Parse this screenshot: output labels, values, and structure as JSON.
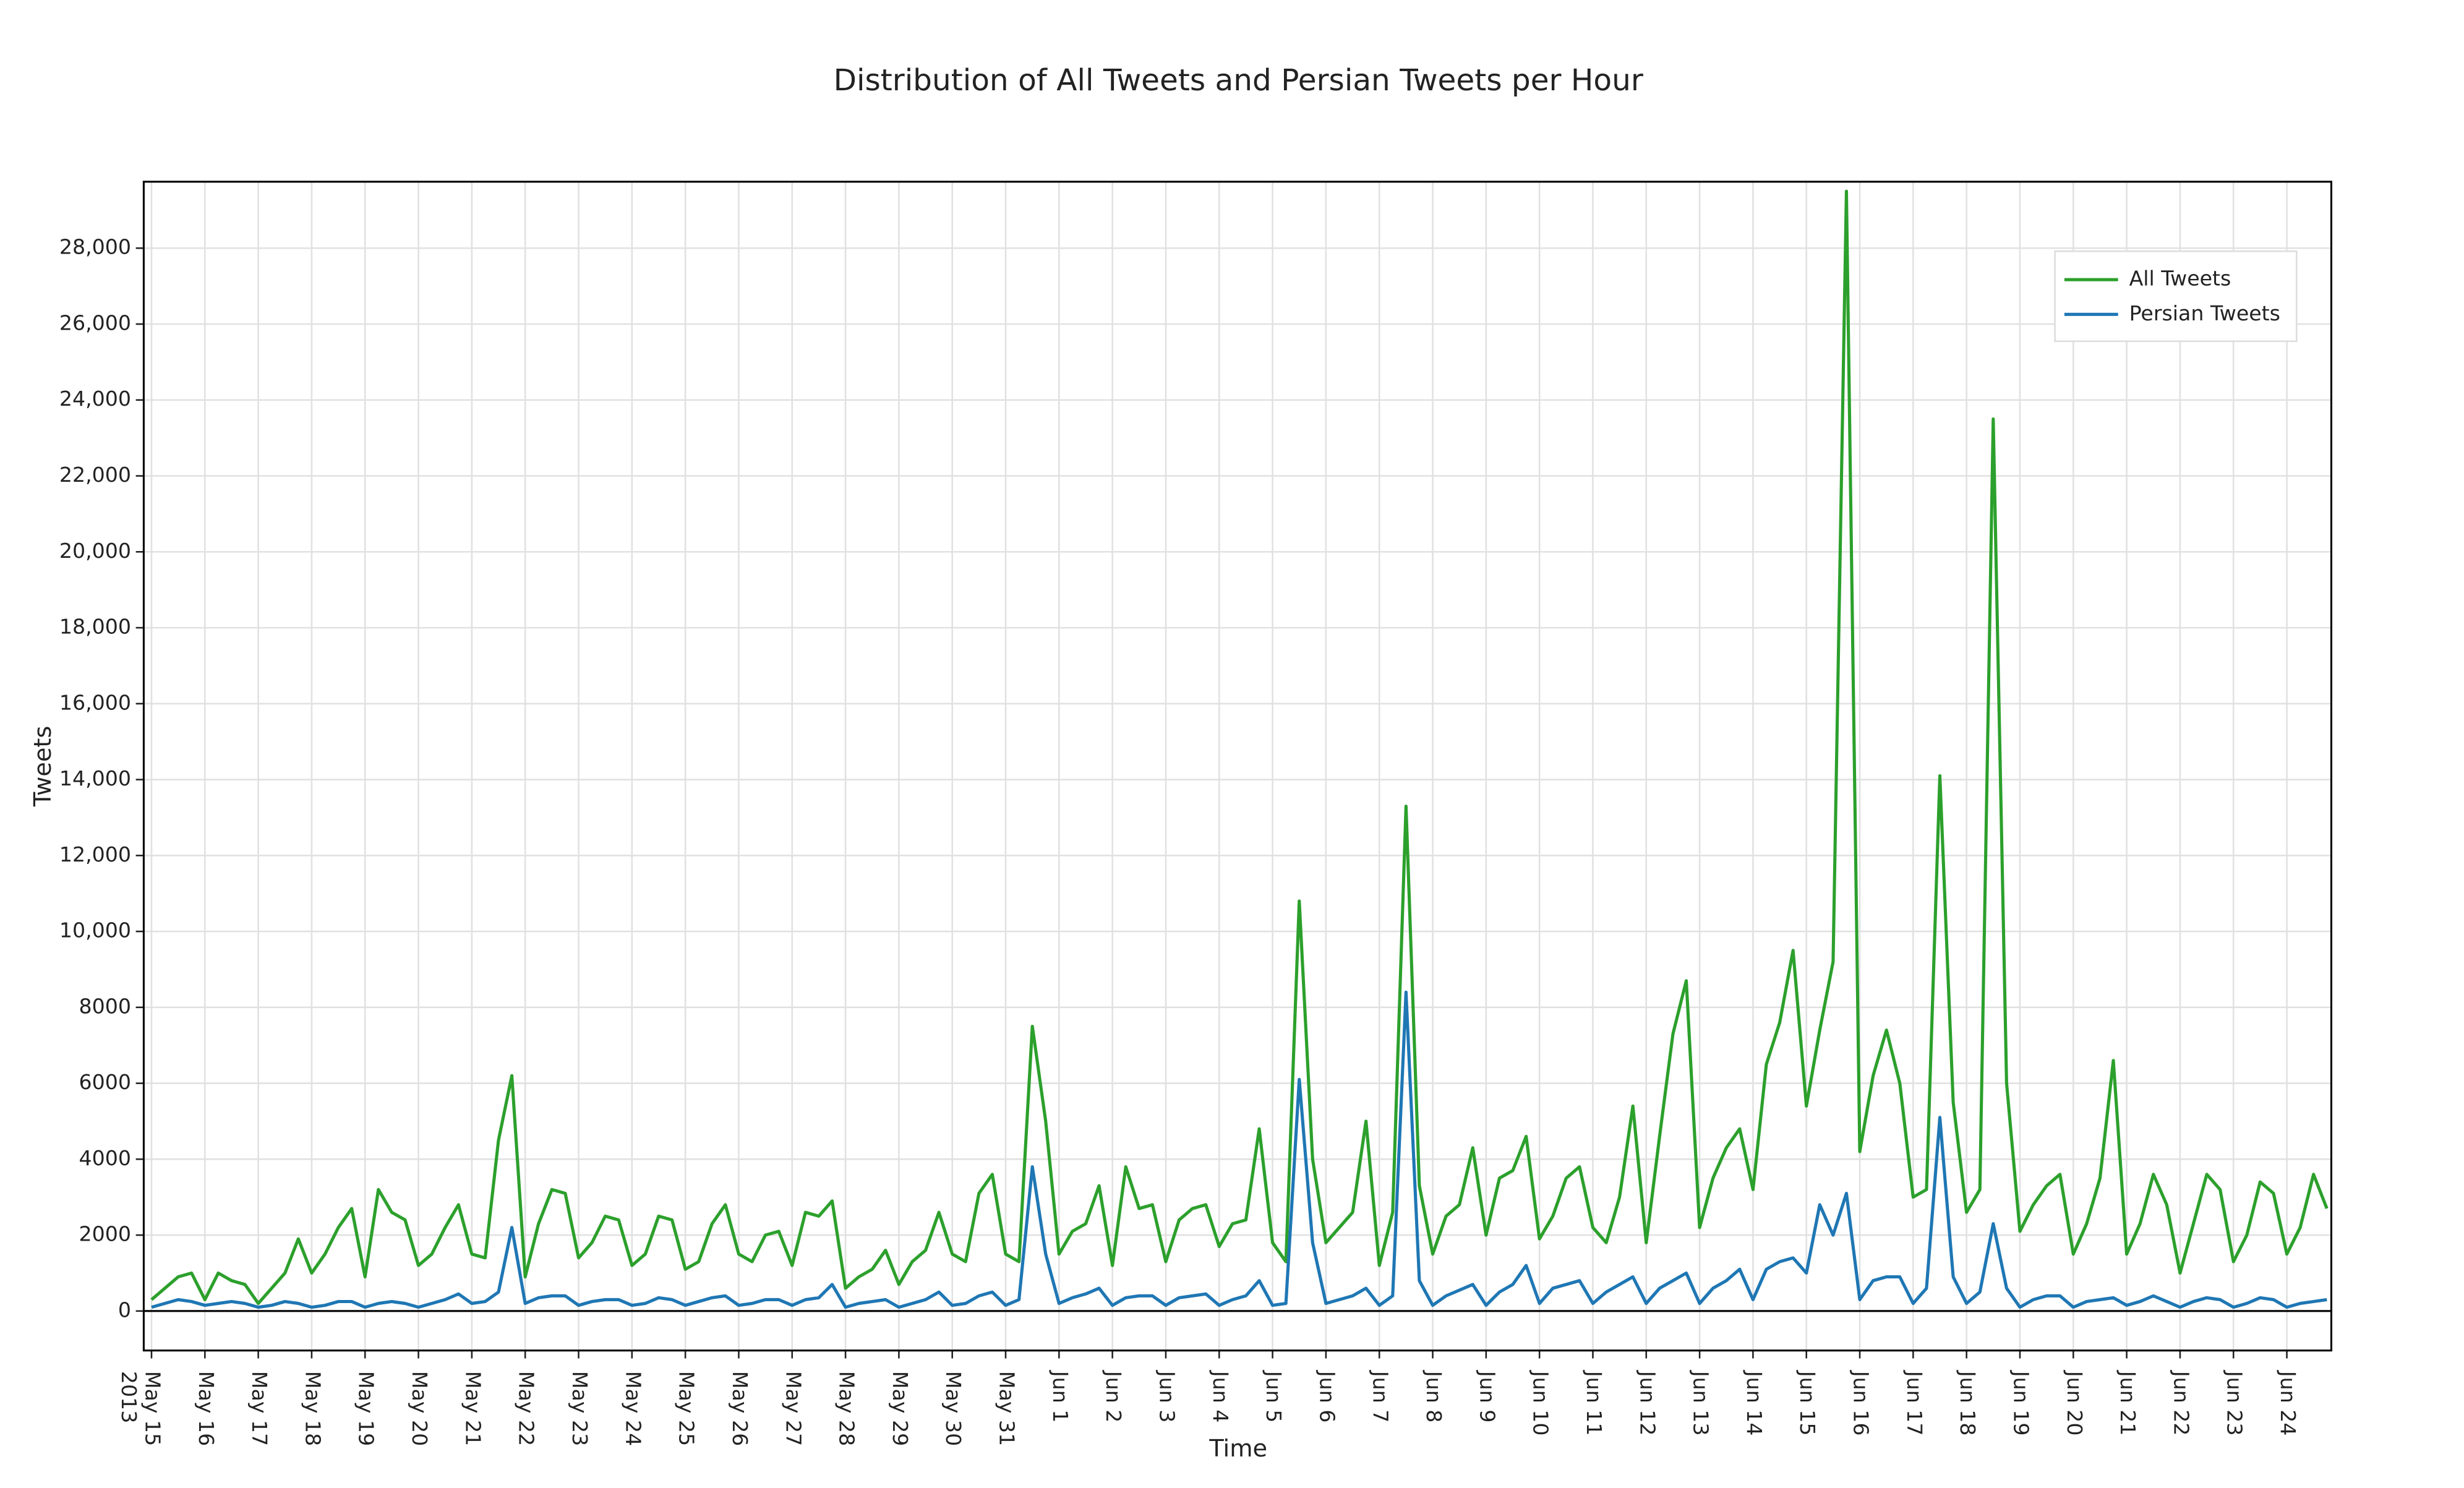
{
  "chart_data": {
    "type": "line",
    "title": "Distribution of All Tweets and Persian Tweets per Hour",
    "x_label": "Time",
    "y_label": "Tweets",
    "x_year": "2013",
    "grid": true,
    "legend": "top-right",
    "xlim": [
      "2013-05-14 20:30",
      "2013-06-24 20:00"
    ],
    "ylim": [
      -1040,
      29750
    ],
    "yticks": [
      0,
      2000,
      4000,
      6000,
      8000,
      {
        "value": 10000,
        "label": "10,000"
      },
      {
        "value": 12000,
        "label": "12,000"
      },
      {
        "value": 14000,
        "label": "14,000"
      },
      {
        "value": 16000,
        "label": "16,000"
      },
      {
        "value": 18000,
        "label": "18,000"
      },
      {
        "value": 20000,
        "label": "20,000"
      },
      {
        "value": 22000,
        "label": "22,000"
      },
      {
        "value": 24000,
        "label": "24,000"
      },
      {
        "value": 26000,
        "label": "26,000"
      },
      {
        "value": 28000,
        "label": "28,000"
      }
    ],
    "xticks": [
      {
        "value": "2013-05-15",
        "label": "May 15"
      },
      {
        "value": "2013-05-16",
        "label": "May 16"
      },
      {
        "value": "2013-05-17",
        "label": "May 17"
      },
      {
        "value": "2013-05-18",
        "label": "May 18"
      },
      {
        "value": "2013-05-19",
        "label": "May 19"
      },
      {
        "value": "2013-05-20",
        "label": "May 20"
      },
      {
        "value": "2013-05-21",
        "label": "May 21"
      },
      {
        "value": "2013-05-22",
        "label": "May 22"
      },
      {
        "value": "2013-05-23",
        "label": "May 23"
      },
      {
        "value": "2013-05-24",
        "label": "May 24"
      },
      {
        "value": "2013-05-25",
        "label": "May 25"
      },
      {
        "value": "2013-05-26",
        "label": "May 26"
      },
      {
        "value": "2013-05-27",
        "label": "May 27"
      },
      {
        "value": "2013-05-28",
        "label": "May 28"
      },
      {
        "value": "2013-05-29",
        "label": "May 29"
      },
      {
        "value": "2013-05-30",
        "label": "May 30"
      },
      {
        "value": "2013-05-31",
        "label": "May 31"
      },
      {
        "value": "2013-06-01",
        "label": "Jun 1"
      },
      {
        "value": "2013-06-02",
        "label": "Jun 2"
      },
      {
        "value": "2013-06-03",
        "label": "Jun 3"
      },
      {
        "value": "2013-06-04",
        "label": "Jun 4"
      },
      {
        "value": "2013-06-05",
        "label": "Jun 5"
      },
      {
        "value": "2013-06-06",
        "label": "Jun 6"
      },
      {
        "value": "2013-06-07",
        "label": "Jun 7"
      },
      {
        "value": "2013-06-08",
        "label": "Jun 8"
      },
      {
        "value": "2013-06-09",
        "label": "Jun 9"
      },
      {
        "value": "2013-06-10",
        "label": "Jun 10"
      },
      {
        "value": "2013-06-11",
        "label": "Jun 11"
      },
      {
        "value": "2013-06-12",
        "label": "Jun 12"
      },
      {
        "value": "2013-06-13",
        "label": "Jun 13"
      },
      {
        "value": "2013-06-14",
        "label": "Jun 14"
      },
      {
        "value": "2013-06-15",
        "label": "Jun 15"
      },
      {
        "value": "2013-06-16",
        "label": "Jun 16"
      },
      {
        "value": "2013-06-17",
        "label": "Jun 17"
      },
      {
        "value": "2013-06-18",
        "label": "Jun 18"
      },
      {
        "value": "2013-06-19",
        "label": "Jun 19"
      },
      {
        "value": "2013-06-20",
        "label": "Jun 20"
      },
      {
        "value": "2013-06-21",
        "label": "Jun 21"
      },
      {
        "value": "2013-06-22",
        "label": "Jun 22"
      },
      {
        "value": "2013-06-23",
        "label": "Jun 23"
      },
      {
        "value": "2013-06-24",
        "label": "Jun 24"
      }
    ],
    "x": [
      "2013-05-15 00:00",
      "2013-05-15 06:00",
      "2013-05-15 12:00",
      "2013-05-15 18:00",
      "2013-05-16 00:00",
      "2013-05-16 06:00",
      "2013-05-16 12:00",
      "2013-05-16 18:00",
      "2013-05-17 00:00",
      "2013-05-17 06:00",
      "2013-05-17 12:00",
      "2013-05-17 18:00",
      "2013-05-18 00:00",
      "2013-05-18 06:00",
      "2013-05-18 12:00",
      "2013-05-18 18:00",
      "2013-05-19 00:00",
      "2013-05-19 06:00",
      "2013-05-19 12:00",
      "2013-05-19 18:00",
      "2013-05-20 00:00",
      "2013-05-20 06:00",
      "2013-05-20 12:00",
      "2013-05-20 18:00",
      "2013-05-21 00:00",
      "2013-05-21 06:00",
      "2013-05-21 12:00",
      "2013-05-21 18:00",
      "2013-05-22 00:00",
      "2013-05-22 06:00",
      "2013-05-22 12:00",
      "2013-05-22 18:00",
      "2013-05-23 00:00",
      "2013-05-23 06:00",
      "2013-05-23 12:00",
      "2013-05-23 18:00",
      "2013-05-24 00:00",
      "2013-05-24 06:00",
      "2013-05-24 12:00",
      "2013-05-24 18:00",
      "2013-05-25 00:00",
      "2013-05-25 06:00",
      "2013-05-25 12:00",
      "2013-05-25 18:00",
      "2013-05-26 00:00",
      "2013-05-26 06:00",
      "2013-05-26 12:00",
      "2013-05-26 18:00",
      "2013-05-27 00:00",
      "2013-05-27 06:00",
      "2013-05-27 12:00",
      "2013-05-27 18:00",
      "2013-05-28 00:00",
      "2013-05-28 06:00",
      "2013-05-28 12:00",
      "2013-05-28 18:00",
      "2013-05-29 00:00",
      "2013-05-29 06:00",
      "2013-05-29 12:00",
      "2013-05-29 18:00",
      "2013-05-30 00:00",
      "2013-05-30 06:00",
      "2013-05-30 12:00",
      "2013-05-30 18:00",
      "2013-05-31 00:00",
      "2013-05-31 06:00",
      "2013-05-31 12:00",
      "2013-05-31 18:00",
      "2013-06-01 00:00",
      "2013-06-01 06:00",
      "2013-06-01 12:00",
      "2013-06-01 18:00",
      "2013-06-02 00:00",
      "2013-06-02 06:00",
      "2013-06-02 12:00",
      "2013-06-02 18:00",
      "2013-06-03 00:00",
      "2013-06-03 06:00",
      "2013-06-03 12:00",
      "2013-06-03 18:00",
      "2013-06-04 00:00",
      "2013-06-04 06:00",
      "2013-06-04 12:00",
      "2013-06-04 18:00",
      "2013-06-05 00:00",
      "2013-06-05 06:00",
      "2013-06-05 12:00",
      "2013-06-05 18:00",
      "2013-06-06 00:00",
      "2013-06-06 06:00",
      "2013-06-06 12:00",
      "2013-06-06 18:00",
      "2013-06-07 00:00",
      "2013-06-07 06:00",
      "2013-06-07 12:00",
      "2013-06-07 18:00",
      "2013-06-08 00:00",
      "2013-06-08 06:00",
      "2013-06-08 12:00",
      "2013-06-08 18:00",
      "2013-06-09 00:00",
      "2013-06-09 06:00",
      "2013-06-09 12:00",
      "2013-06-09 18:00",
      "2013-06-10 00:00",
      "2013-06-10 06:00",
      "2013-06-10 12:00",
      "2013-06-10 18:00",
      "2013-06-11 00:00",
      "2013-06-11 06:00",
      "2013-06-11 12:00",
      "2013-06-11 18:00",
      "2013-06-12 00:00",
      "2013-06-12 06:00",
      "2013-06-12 12:00",
      "2013-06-12 18:00",
      "2013-06-13 00:00",
      "2013-06-13 06:00",
      "2013-06-13 12:00",
      "2013-06-13 18:00",
      "2013-06-14 00:00",
      "2013-06-14 06:00",
      "2013-06-14 12:00",
      "2013-06-14 18:00",
      "2013-06-15 00:00",
      "2013-06-15 06:00",
      "2013-06-15 12:00",
      "2013-06-15 18:00",
      "2013-06-16 00:00",
      "2013-06-16 06:00",
      "2013-06-16 12:00",
      "2013-06-16 18:00",
      "2013-06-17 00:00",
      "2013-06-17 06:00",
      "2013-06-17 12:00",
      "2013-06-17 18:00",
      "2013-06-18 00:00",
      "2013-06-18 06:00",
      "2013-06-18 12:00",
      "2013-06-18 18:00",
      "2013-06-19 00:00",
      "2013-06-19 06:00",
      "2013-06-19 12:00",
      "2013-06-19 18:00",
      "2013-06-20 00:00",
      "2013-06-20 06:00",
      "2013-06-20 12:00",
      "2013-06-20 18:00",
      "2013-06-21 00:00",
      "2013-06-21 06:00",
      "2013-06-21 12:00",
      "2013-06-21 18:00",
      "2013-06-22 00:00",
      "2013-06-22 06:00",
      "2013-06-22 12:00",
      "2013-06-22 18:00",
      "2013-06-23 00:00",
      "2013-06-23 06:00",
      "2013-06-23 12:00",
      "2013-06-23 18:00",
      "2013-06-24 00:00",
      "2013-06-24 06:00",
      "2013-06-24 12:00",
      "2013-06-24 18:00"
    ],
    "series": [
      {
        "name": "All Tweets",
        "color": "#2ca02c",
        "values": [
          300,
          600,
          900,
          1000,
          300,
          1000,
          800,
          700,
          200,
          600,
          1000,
          1900,
          1000,
          1500,
          2200,
          2700,
          900,
          3200,
          2600,
          2400,
          1200,
          1500,
          2200,
          2800,
          1500,
          1400,
          4500,
          6200,
          900,
          2300,
          3200,
          3100,
          1400,
          1800,
          2500,
          2400,
          1200,
          1500,
          2500,
          2400,
          1100,
          1300,
          2300,
          2800,
          1500,
          1300,
          2000,
          2100,
          1200,
          2600,
          2500,
          2900,
          600,
          900,
          1100,
          1600,
          700,
          1300,
          1600,
          2600,
          1500,
          1300,
          3100,
          3600,
          1500,
          1300,
          7500,
          5000,
          1500,
          2100,
          2300,
          3300,
          1200,
          3800,
          2700,
          2800,
          1300,
          2400,
          2700,
          2800,
          1700,
          2300,
          2400,
          4800,
          1800,
          1300,
          10800,
          4000,
          1800,
          2200,
          2600,
          5000,
          1200,
          2600,
          13300,
          3300,
          1500,
          2500,
          2800,
          4300,
          2000,
          3500,
          3700,
          4600,
          1900,
          2500,
          3500,
          3800,
          2200,
          1800,
          3000,
          5400,
          1800,
          4600,
          7300,
          8700,
          2200,
          3500,
          4300,
          4800,
          3200,
          6500,
          7600,
          9500,
          5400,
          7400,
          9200,
          29500,
          4200,
          6200,
          7400,
          6000,
          3000,
          3200,
          14100,
          5500,
          2600,
          3200,
          23500,
          6000,
          2100,
          2800,
          3300,
          3600,
          1500,
          2300,
          3500,
          6600,
          1500,
          2300,
          3600,
          2800,
          1000,
          2300,
          3600,
          3200,
          1300,
          2000,
          3400,
          3100,
          1500,
          2200,
          3600,
          2700
        ]
      },
      {
        "name": "Persian Tweets",
        "color": "#1f77b4",
        "values": [
          100,
          200,
          300,
          250,
          150,
          200,
          250,
          200,
          100,
          150,
          250,
          200,
          100,
          150,
          250,
          250,
          100,
          200,
          250,
          200,
          100,
          200,
          300,
          450,
          200,
          250,
          500,
          2200,
          200,
          350,
          400,
          400,
          150,
          250,
          300,
          300,
          150,
          200,
          350,
          300,
          150,
          250,
          350,
          400,
          150,
          200,
          300,
          300,
          150,
          300,
          350,
          700,
          100,
          200,
          250,
          300,
          100,
          200,
          300,
          500,
          150,
          200,
          400,
          500,
          150,
          300,
          3800,
          1500,
          200,
          350,
          450,
          600,
          150,
          350,
          400,
          400,
          150,
          350,
          400,
          450,
          150,
          300,
          400,
          800,
          150,
          200,
          6100,
          1800,
          200,
          300,
          400,
          600,
          150,
          400,
          8400,
          800,
          150,
          400,
          550,
          700,
          150,
          500,
          700,
          1200,
          200,
          600,
          700,
          800,
          200,
          500,
          700,
          900,
          200,
          600,
          800,
          1000,
          200,
          600,
          800,
          1100,
          300,
          1100,
          1300,
          1400,
          1000,
          2800,
          2000,
          3100,
          300,
          800,
          900,
          900,
          200,
          600,
          5100,
          900,
          200,
          500,
          2300,
          600,
          100,
          300,
          400,
          400,
          100,
          250,
          300,
          350,
          150,
          250,
          400,
          250,
          100,
          250,
          350,
          300,
          100,
          200,
          350,
          300,
          100,
          200,
          250,
          300
        ]
      }
    ]
  }
}
